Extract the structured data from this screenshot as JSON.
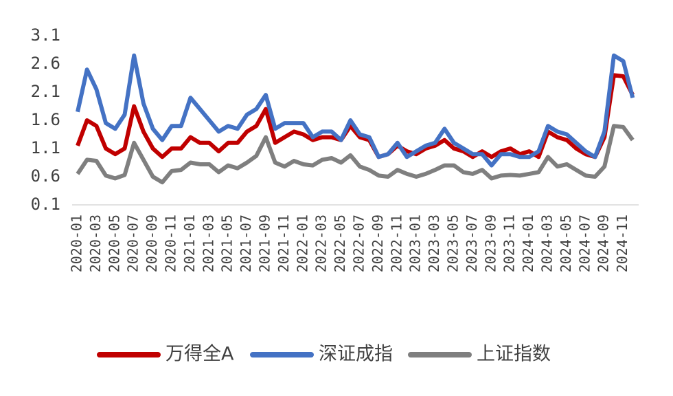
{
  "chart_data": {
    "type": "line",
    "categories": [
      "2020-01",
      null,
      "2020-03",
      null,
      "2020-05",
      null,
      "2020-07",
      null,
      "2020-09",
      null,
      "2020-11",
      null,
      "2021-01",
      null,
      "2021-03",
      null,
      "2021-05",
      null,
      "2021-07",
      null,
      "2021-09",
      null,
      "2021-11",
      null,
      "2022-01",
      null,
      "2022-03",
      null,
      "2022-05",
      null,
      "2022-07",
      null,
      "2022-09",
      null,
      "2022-11",
      null,
      "2023-01",
      null,
      "2023-03",
      null,
      "2023-05",
      null,
      "2023-07",
      null,
      "2023-09",
      null,
      "2023-11",
      null,
      "2024-01",
      null,
      "2024-03",
      null,
      "2024-05",
      null,
      "2024-07",
      null,
      "2024-09",
      null,
      "2024-11",
      null
    ],
    "series": [
      {
        "name": "万得全A",
        "color": "#c00000",
        "values": [
          1.15,
          1.6,
          1.5,
          1.1,
          1.0,
          1.1,
          1.85,
          1.4,
          1.1,
          0.95,
          1.1,
          1.1,
          1.3,
          1.2,
          1.2,
          1.05,
          1.2,
          1.2,
          1.4,
          1.5,
          1.8,
          1.2,
          1.3,
          1.4,
          1.35,
          1.25,
          1.3,
          1.3,
          1.25,
          1.5,
          1.3,
          1.25,
          0.95,
          1.0,
          1.15,
          1.05,
          1.0,
          1.1,
          1.15,
          1.25,
          1.1,
          1.05,
          0.95,
          1.05,
          0.95,
          1.05,
          1.1,
          1.0,
          1.05,
          0.95,
          1.4,
          1.3,
          1.25,
          1.1,
          1.0,
          0.95,
          1.3,
          2.4,
          2.38,
          2.05
        ]
      },
      {
        "name": "深证成指",
        "color": "#4472c4",
        "values": [
          1.75,
          2.5,
          2.15,
          1.55,
          1.45,
          1.7,
          2.75,
          1.9,
          1.45,
          1.25,
          1.5,
          1.5,
          2.0,
          1.8,
          1.6,
          1.4,
          1.5,
          1.45,
          1.7,
          1.8,
          2.05,
          1.45,
          1.55,
          1.55,
          1.55,
          1.3,
          1.4,
          1.4,
          1.25,
          1.6,
          1.35,
          1.3,
          0.95,
          1.0,
          1.2,
          0.95,
          1.05,
          1.15,
          1.2,
          1.45,
          1.2,
          1.1,
          1.0,
          1.0,
          0.8,
          1.0,
          1.0,
          0.95,
          0.95,
          1.05,
          1.5,
          1.4,
          1.35,
          1.2,
          1.05,
          0.95,
          1.4,
          2.75,
          2.65,
          2.0
        ]
      },
      {
        "name": "上证指数",
        "color": "#7f7f7f",
        "values": [
          0.65,
          0.9,
          0.88,
          0.62,
          0.57,
          0.63,
          1.2,
          0.9,
          0.6,
          0.5,
          0.7,
          0.72,
          0.85,
          0.82,
          0.82,
          0.68,
          0.8,
          0.75,
          0.85,
          0.97,
          1.3,
          0.85,
          0.78,
          0.88,
          0.82,
          0.8,
          0.9,
          0.93,
          0.85,
          0.98,
          0.78,
          0.72,
          0.62,
          0.6,
          0.72,
          0.65,
          0.6,
          0.65,
          0.72,
          0.8,
          0.8,
          0.68,
          0.65,
          0.72,
          0.57,
          0.62,
          0.63,
          0.62,
          0.65,
          0.68,
          0.95,
          0.78,
          0.82,
          0.72,
          0.62,
          0.6,
          0.78,
          1.5,
          1.48,
          1.25
        ]
      }
    ],
    "ylim": [
      0.1,
      3.1
    ],
    "yticks": [
      0.1,
      0.6,
      1.1,
      1.6,
      2.1,
      2.6,
      3.1
    ],
    "grid": false,
    "legend": "bottom"
  }
}
